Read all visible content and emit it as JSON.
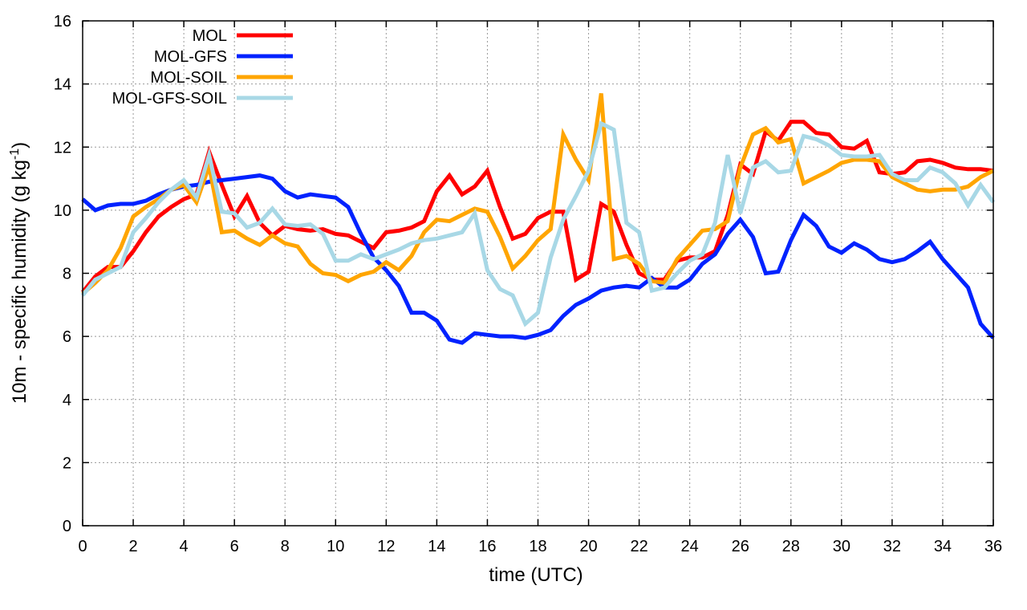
{
  "chart_data": {
    "type": "line",
    "title": "",
    "xlabel": "time (UTC)",
    "ylabel_main": "10m - specific humidity (g kg",
    "ylabel_sup": "-1",
    "ylabel_close": ")",
    "xlim": [
      0,
      36
    ],
    "ylim": [
      0,
      16
    ],
    "xticks": [
      0,
      2,
      4,
      6,
      8,
      10,
      12,
      14,
      16,
      18,
      20,
      22,
      24,
      26,
      28,
      30,
      32,
      34,
      36
    ],
    "yticks": [
      0,
      2,
      4,
      6,
      8,
      10,
      12,
      14,
      16
    ],
    "grid": true,
    "legend_position": "top-left",
    "series": [
      {
        "name": "MOL",
        "color": "#ff0000",
        "points": [
          [
            0,
            7.4
          ],
          [
            0.5,
            7.9
          ],
          [
            1,
            8.2
          ],
          [
            1.5,
            8.2
          ],
          [
            2,
            8.7
          ],
          [
            2.5,
            9.3
          ],
          [
            3,
            9.8
          ],
          [
            3.5,
            10.1
          ],
          [
            4,
            10.35
          ],
          [
            4.5,
            10.5
          ],
          [
            5,
            11.85
          ],
          [
            5.5,
            10.8
          ],
          [
            6,
            9.8
          ],
          [
            6.5,
            10.45
          ],
          [
            7,
            9.6
          ],
          [
            7.5,
            9.2
          ],
          [
            8,
            9.5
          ],
          [
            8.5,
            9.4
          ],
          [
            9,
            9.35
          ],
          [
            9.5,
            9.4
          ],
          [
            10,
            9.25
          ],
          [
            10.5,
            9.2
          ],
          [
            11,
            9.0
          ],
          [
            11.5,
            8.8
          ],
          [
            12,
            9.3
          ],
          [
            12.5,
            9.35
          ],
          [
            13,
            9.45
          ],
          [
            13.5,
            9.65
          ],
          [
            14,
            10.6
          ],
          [
            14.5,
            11.1
          ],
          [
            15,
            10.5
          ],
          [
            15.5,
            10.75
          ],
          [
            16,
            11.25
          ],
          [
            16.5,
            10.1
          ],
          [
            17,
            9.1
          ],
          [
            17.5,
            9.25
          ],
          [
            18,
            9.75
          ],
          [
            18.5,
            9.95
          ],
          [
            19,
            9.95
          ],
          [
            19.5,
            7.8
          ],
          [
            20,
            8.05
          ],
          [
            20.5,
            10.2
          ],
          [
            21,
            9.95
          ],
          [
            21.5,
            8.9
          ],
          [
            22,
            8.0
          ],
          [
            22.5,
            7.8
          ],
          [
            23,
            7.8
          ],
          [
            23.5,
            8.4
          ],
          [
            24,
            8.5
          ],
          [
            24.5,
            8.5
          ],
          [
            25,
            8.7
          ],
          [
            25.5,
            9.85
          ],
          [
            26,
            11.45
          ],
          [
            26.5,
            11.15
          ],
          [
            27,
            12.5
          ],
          [
            27.5,
            12.2
          ],
          [
            28,
            12.8
          ],
          [
            28.5,
            12.8
          ],
          [
            29,
            12.45
          ],
          [
            29.5,
            12.4
          ],
          [
            30,
            12.0
          ],
          [
            30.5,
            11.95
          ],
          [
            31,
            12.2
          ],
          [
            31.5,
            11.2
          ],
          [
            32,
            11.15
          ],
          [
            32.5,
            11.2
          ],
          [
            33,
            11.55
          ],
          [
            33.5,
            11.6
          ],
          [
            34,
            11.5
          ],
          [
            34.5,
            11.35
          ],
          [
            35,
            11.3
          ],
          [
            35.5,
            11.3
          ],
          [
            36,
            11.25
          ]
        ]
      },
      {
        "name": "MOL-GFS",
        "color": "#0022ff",
        "points": [
          [
            0,
            10.35
          ],
          [
            0.5,
            10.0
          ],
          [
            1,
            10.15
          ],
          [
            1.5,
            10.2
          ],
          [
            2,
            10.2
          ],
          [
            2.5,
            10.3
          ],
          [
            3,
            10.5
          ],
          [
            3.5,
            10.65
          ],
          [
            4,
            10.75
          ],
          [
            4.5,
            10.8
          ],
          [
            5,
            10.9
          ],
          [
            5.5,
            10.95
          ],
          [
            6,
            11.0
          ],
          [
            6.5,
            11.05
          ],
          [
            7,
            11.1
          ],
          [
            7.5,
            11.0
          ],
          [
            8,
            10.6
          ],
          [
            8.5,
            10.4
          ],
          [
            9,
            10.5
          ],
          [
            9.5,
            10.45
          ],
          [
            10,
            10.4
          ],
          [
            10.5,
            10.1
          ],
          [
            11,
            9.25
          ],
          [
            11.5,
            8.5
          ],
          [
            12,
            8.1
          ],
          [
            12.5,
            7.6
          ],
          [
            13,
            6.75
          ],
          [
            13.5,
            6.75
          ],
          [
            14,
            6.5
          ],
          [
            14.5,
            5.9
          ],
          [
            15,
            5.8
          ],
          [
            15.5,
            6.1
          ],
          [
            16,
            6.05
          ],
          [
            16.5,
            6.0
          ],
          [
            17,
            6.0
          ],
          [
            17.5,
            5.95
          ],
          [
            18,
            6.05
          ],
          [
            18.5,
            6.2
          ],
          [
            19,
            6.65
          ],
          [
            19.5,
            7.0
          ],
          [
            20,
            7.2
          ],
          [
            20.5,
            7.45
          ],
          [
            21,
            7.55
          ],
          [
            21.5,
            7.6
          ],
          [
            22,
            7.55
          ],
          [
            22.5,
            7.85
          ],
          [
            23,
            7.55
          ],
          [
            23.5,
            7.55
          ],
          [
            24,
            7.8
          ],
          [
            24.5,
            8.3
          ],
          [
            25,
            8.6
          ],
          [
            25.5,
            9.25
          ],
          [
            26,
            9.7
          ],
          [
            26.5,
            9.15
          ],
          [
            27,
            8.0
          ],
          [
            27.5,
            8.05
          ],
          [
            28,
            9.05
          ],
          [
            28.5,
            9.85
          ],
          [
            29,
            9.5
          ],
          [
            29.5,
            8.85
          ],
          [
            30,
            8.65
          ],
          [
            30.5,
            8.95
          ],
          [
            31,
            8.75
          ],
          [
            31.5,
            8.45
          ],
          [
            32,
            8.35
          ],
          [
            32.5,
            8.45
          ],
          [
            33,
            8.7
          ],
          [
            33.5,
            9.0
          ],
          [
            34,
            8.45
          ],
          [
            34.5,
            8.0
          ],
          [
            35,
            7.55
          ],
          [
            35.5,
            6.4
          ],
          [
            36,
            5.95
          ]
        ]
      },
      {
        "name": "MOL-SOIL",
        "color": "#ffa500",
        "points": [
          [
            0,
            7.35
          ],
          [
            0.5,
            7.7
          ],
          [
            1,
            8.1
          ],
          [
            1.5,
            8.8
          ],
          [
            2,
            9.8
          ],
          [
            2.5,
            10.1
          ],
          [
            3,
            10.35
          ],
          [
            3.5,
            10.65
          ],
          [
            4,
            10.8
          ],
          [
            4.5,
            10.25
          ],
          [
            5,
            11.4
          ],
          [
            5.5,
            9.3
          ],
          [
            6,
            9.35
          ],
          [
            6.5,
            9.1
          ],
          [
            7,
            8.9
          ],
          [
            7.5,
            9.2
          ],
          [
            8,
            8.95
          ],
          [
            8.5,
            8.85
          ],
          [
            9,
            8.3
          ],
          [
            9.5,
            8.0
          ],
          [
            10,
            7.95
          ],
          [
            10.5,
            7.75
          ],
          [
            11,
            7.95
          ],
          [
            11.5,
            8.05
          ],
          [
            12,
            8.35
          ],
          [
            12.5,
            8.1
          ],
          [
            13,
            8.55
          ],
          [
            13.5,
            9.3
          ],
          [
            14,
            9.7
          ],
          [
            14.5,
            9.65
          ],
          [
            15,
            9.85
          ],
          [
            15.5,
            10.05
          ],
          [
            16,
            9.95
          ],
          [
            16.5,
            9.15
          ],
          [
            17,
            8.15
          ],
          [
            17.5,
            8.55
          ],
          [
            18,
            9.05
          ],
          [
            18.5,
            9.4
          ],
          [
            19,
            12.4
          ],
          [
            19.5,
            11.6
          ],
          [
            20,
            10.95
          ],
          [
            20.5,
            13.7
          ],
          [
            21,
            8.45
          ],
          [
            21.5,
            8.55
          ],
          [
            22,
            8.3
          ],
          [
            22.5,
            7.75
          ],
          [
            23,
            7.7
          ],
          [
            23.5,
            8.45
          ],
          [
            24,
            8.9
          ],
          [
            24.5,
            9.35
          ],
          [
            25,
            9.4
          ],
          [
            25.5,
            9.65
          ],
          [
            26,
            11.35
          ],
          [
            26.5,
            12.4
          ],
          [
            27,
            12.6
          ],
          [
            27.5,
            12.15
          ],
          [
            28,
            12.25
          ],
          [
            28.5,
            10.85
          ],
          [
            29,
            11.05
          ],
          [
            29.5,
            11.25
          ],
          [
            30,
            11.5
          ],
          [
            30.5,
            11.6
          ],
          [
            31,
            11.6
          ],
          [
            31.5,
            11.55
          ],
          [
            32,
            11.05
          ],
          [
            32.5,
            10.85
          ],
          [
            33,
            10.65
          ],
          [
            33.5,
            10.6
          ],
          [
            34,
            10.65
          ],
          [
            34.5,
            10.65
          ],
          [
            35,
            10.75
          ],
          [
            35.5,
            11.05
          ],
          [
            36,
            11.25
          ]
        ]
      },
      {
        "name": "MOL-GFS-SOIL",
        "color": "#a8d8e6",
        "points": [
          [
            0,
            7.3
          ],
          [
            0.5,
            7.8
          ],
          [
            1,
            8.0
          ],
          [
            1.5,
            8.2
          ],
          [
            2,
            9.3
          ],
          [
            2.5,
            9.75
          ],
          [
            3,
            10.25
          ],
          [
            3.5,
            10.65
          ],
          [
            4,
            10.95
          ],
          [
            4.5,
            10.4
          ],
          [
            5,
            11.75
          ],
          [
            5.5,
            9.95
          ],
          [
            6,
            9.9
          ],
          [
            6.5,
            9.45
          ],
          [
            7,
            9.6
          ],
          [
            7.5,
            10.05
          ],
          [
            8,
            9.55
          ],
          [
            8.5,
            9.5
          ],
          [
            9,
            9.55
          ],
          [
            9.5,
            9.25
          ],
          [
            10,
            8.4
          ],
          [
            10.5,
            8.4
          ],
          [
            11,
            8.6
          ],
          [
            11.5,
            8.45
          ],
          [
            12,
            8.6
          ],
          [
            12.5,
            8.75
          ],
          [
            13,
            8.95
          ],
          [
            13.5,
            9.05
          ],
          [
            14,
            9.1
          ],
          [
            14.5,
            9.2
          ],
          [
            15,
            9.3
          ],
          [
            15.5,
            9.9
          ],
          [
            16,
            8.1
          ],
          [
            16.5,
            7.5
          ],
          [
            17,
            7.3
          ],
          [
            17.5,
            6.4
          ],
          [
            18,
            6.75
          ],
          [
            18.5,
            8.5
          ],
          [
            19,
            9.7
          ],
          [
            19.5,
            10.45
          ],
          [
            20,
            11.25
          ],
          [
            20.5,
            12.75
          ],
          [
            21,
            12.55
          ],
          [
            21.5,
            9.6
          ],
          [
            22,
            9.3
          ],
          [
            22.5,
            7.45
          ],
          [
            23,
            7.55
          ],
          [
            23.5,
            8.0
          ],
          [
            24,
            8.4
          ],
          [
            24.5,
            8.6
          ],
          [
            25,
            9.6
          ],
          [
            25.5,
            11.75
          ],
          [
            26,
            9.9
          ],
          [
            26.5,
            11.35
          ],
          [
            27,
            11.55
          ],
          [
            27.5,
            11.2
          ],
          [
            28,
            11.25
          ],
          [
            28.5,
            12.35
          ],
          [
            29,
            12.25
          ],
          [
            29.5,
            12.05
          ],
          [
            30,
            11.75
          ],
          [
            30.5,
            11.7
          ],
          [
            31,
            11.7
          ],
          [
            31.5,
            11.75
          ],
          [
            32,
            11.15
          ],
          [
            32.5,
            10.95
          ],
          [
            33,
            10.95
          ],
          [
            33.5,
            11.35
          ],
          [
            34,
            11.2
          ],
          [
            34.5,
            10.85
          ],
          [
            35,
            10.15
          ],
          [
            35.5,
            10.8
          ],
          [
            36,
            10.25
          ]
        ]
      }
    ]
  }
}
